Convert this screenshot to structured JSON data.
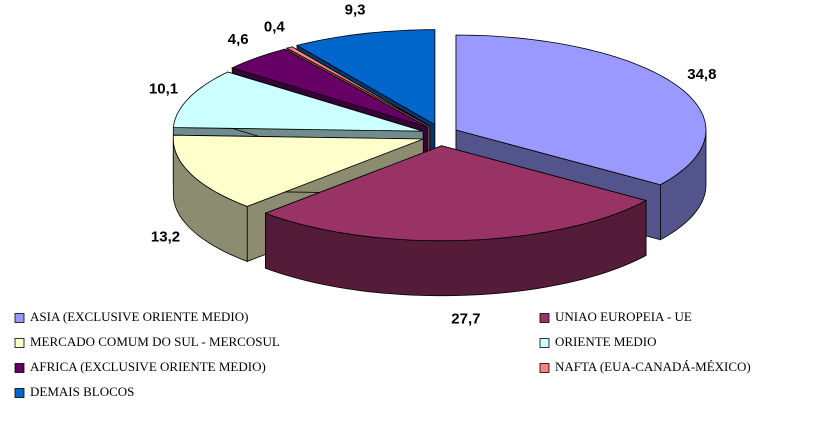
{
  "chart_data": {
    "type": "pie3d",
    "categories": [
      "ASIA (EXCLUSIVE ORIENTE MEDIO)",
      "UNIAO EUROPEIA - UE",
      "MERCADO COMUM DO SUL - MERCOSUL",
      "ORIENTE MEDIO",
      "AFRICA (EXCLUSIVE ORIENTE MEDIO)",
      "NAFTA (EUA-CANADÁ-MÉXICO)",
      "DEMAIS BLOCOS"
    ],
    "values": [
      34.8,
      27.7,
      13.2,
      10.1,
      4.6,
      0.4,
      9.3
    ],
    "value_labels": [
      "34,8",
      "27,7",
      "13,2",
      "10,1",
      "4,6",
      "0,4",
      "9,3"
    ],
    "colors": [
      "#9999ff",
      "#993366",
      "#ffffcc",
      "#ccffff",
      "#660066",
      "#ff8080",
      "#0066cc"
    ],
    "legend": "bottom"
  }
}
